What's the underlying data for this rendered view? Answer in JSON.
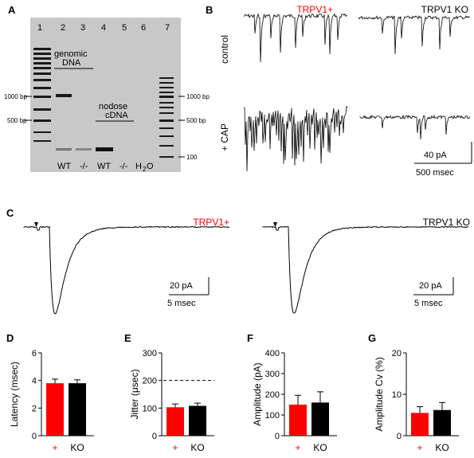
{
  "panels": {
    "A": {
      "letter": "A",
      "lane_numbers": [
        "1",
        "2",
        "3",
        "4",
        "5",
        "6",
        "7"
      ],
      "labels": {
        "genomic_line1": "genomic",
        "genomic_line2": "DNA",
        "nodose_line1": "nodose",
        "nodose_line2": "cDNA"
      },
      "left_markers": [
        "1000 bp",
        "500 bp"
      ],
      "right_markers": [
        "1000 bp",
        "500 bp",
        "100"
      ],
      "lane_labels": [
        "WT",
        "-/-",
        "WT",
        "-/-",
        "H",
        "2",
        "O"
      ]
    },
    "B": {
      "letter": "B",
      "col_left": "TRPV1+",
      "col_right": "TRPV1 KO",
      "row_top": "control",
      "row_bottom": "+ CAP",
      "scale_y": "40 pA",
      "scale_x": "500 msec"
    },
    "C": {
      "letter": "C",
      "left_label": "TRPV1+",
      "right_label": "TRPV1 KO",
      "scale_y": "20 pA",
      "scale_x": "5 msec"
    }
  },
  "chart_data": [
    {
      "panel": "D",
      "type": "bar",
      "categories": [
        "+",
        "KO"
      ],
      "values": [
        3.8,
        3.8
      ],
      "errors": [
        0.3,
        0.25
      ],
      "ylabel": "Latency (msec)",
      "ylim": [
        0,
        6
      ],
      "yticks": [
        "0",
        "2",
        "4",
        "6"
      ],
      "colors": [
        "#ff0000",
        "#000000"
      ]
    },
    {
      "panel": "E",
      "type": "bar",
      "categories": [
        "+",
        "KO"
      ],
      "values": [
        103,
        108
      ],
      "errors": [
        12,
        10
      ],
      "ylabel": "Jitter (μsec)",
      "ylim": [
        0,
        300
      ],
      "yticks": [
        "0",
        "100",
        "200",
        "300"
      ],
      "reference_line": 200,
      "colors": [
        "#ff0000",
        "#000000"
      ]
    },
    {
      "panel": "F",
      "type": "bar",
      "categories": [
        "+",
        "KO"
      ],
      "values": [
        150,
        160
      ],
      "errors": [
        45,
        52
      ],
      "ylabel": "Amplitude (pA)",
      "ylim": [
        0,
        400
      ],
      "yticks": [
        "0",
        "100",
        "200",
        "300",
        "400"
      ],
      "colors": [
        "#ff0000",
        "#000000"
      ]
    },
    {
      "panel": "G",
      "type": "bar",
      "categories": [
        "+",
        "KO"
      ],
      "values": [
        5.5,
        6.2
      ],
      "errors": [
        1.5,
        1.8
      ],
      "ylabel": "Amplitude Cv (%)",
      "ylim": [
        0,
        20
      ],
      "yticks": [
        "0",
        "10",
        "20"
      ],
      "colors": [
        "#ff0000",
        "#000000"
      ]
    }
  ]
}
